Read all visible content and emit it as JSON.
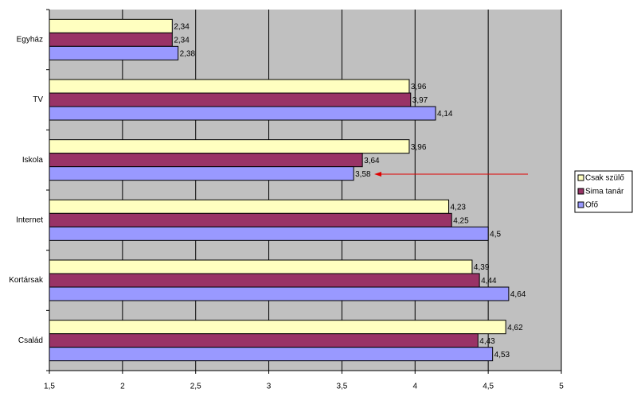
{
  "chart_data": {
    "type": "bar",
    "orientation": "horizontal",
    "categories": [
      "Egyház",
      "TV",
      "Iskola",
      "Internet",
      "Kortársak",
      "Család"
    ],
    "series": [
      {
        "name": "Csak szülő",
        "color": "#FFFFC0",
        "values": [
          2.34,
          3.96,
          3.96,
          4.23,
          4.39,
          4.62
        ],
        "value_labels": [
          "2,34",
          "3,96",
          "3,96",
          "4,23",
          "4,39",
          "4,62"
        ]
      },
      {
        "name": "Sima tanár",
        "color": "#993366",
        "values": [
          2.34,
          3.97,
          3.64,
          4.25,
          4.44,
          4.43
        ],
        "value_labels": [
          "2,34",
          "3,97",
          "3,64",
          "4,25",
          "4,44",
          "4,43"
        ]
      },
      {
        "name": "Ofő",
        "color": "#9999FF",
        "values": [
          2.38,
          4.14,
          3.58,
          4.5,
          4.64,
          4.53
        ],
        "value_labels": [
          "2,38",
          "4,14",
          "3,58",
          "4,5",
          "4,64",
          "4,53"
        ]
      }
    ],
    "xlim": [
      1.5,
      5
    ],
    "xticks": [
      {
        "value": 1.5,
        "label": "1,5"
      },
      2,
      {
        "value": 2.5,
        "label": "2,5"
      },
      3,
      {
        "value": 3.5,
        "label": "3,5"
      },
      4,
      {
        "value": 4.5,
        "label": "4,5"
      },
      5
    ],
    "grid": true,
    "legend": "right"
  }
}
